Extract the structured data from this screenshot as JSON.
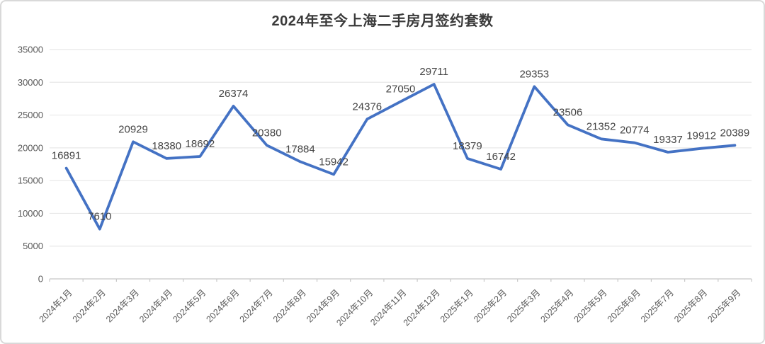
{
  "chart_data": {
    "type": "line",
    "title": "2024年至今上海二手房月签约套数",
    "categories": [
      "2024年1月",
      "2024年2月",
      "2024年3月",
      "2024年4月",
      "2024年5月",
      "2024年6月",
      "2024年7月",
      "2024年8月",
      "2024年9月",
      "2024年10月",
      "2024年11月",
      "2024年12月",
      "2025年1月",
      "2025年2月",
      "2025年3月",
      "2025年4月",
      "2025年5月",
      "2025年6月",
      "2025年7月",
      "2025年8月",
      "2025年9月"
    ],
    "values": [
      16891,
      7610,
      20929,
      18380,
      18692,
      26374,
      20380,
      17884,
      15942,
      24376,
      27050,
      29711,
      18379,
      16742,
      29353,
      23506,
      21352,
      20774,
      19337,
      19912,
      20389
    ],
    "xlabel": "",
    "ylabel": "",
    "ylim": [
      0,
      35000
    ],
    "yticks": [
      0,
      5000,
      10000,
      15000,
      20000,
      25000,
      30000,
      35000
    ],
    "grid": true,
    "legend": "none",
    "data_labels": true,
    "colors": {
      "line": "#4472C4",
      "grid": "#E8E8E8",
      "axis": "#C8C8C8",
      "data_label": "#444444",
      "tick_label": "#595959",
      "title": "#3a3a3a",
      "frame_border": "#d9d9d9",
      "background": "#FFFFFF"
    }
  }
}
